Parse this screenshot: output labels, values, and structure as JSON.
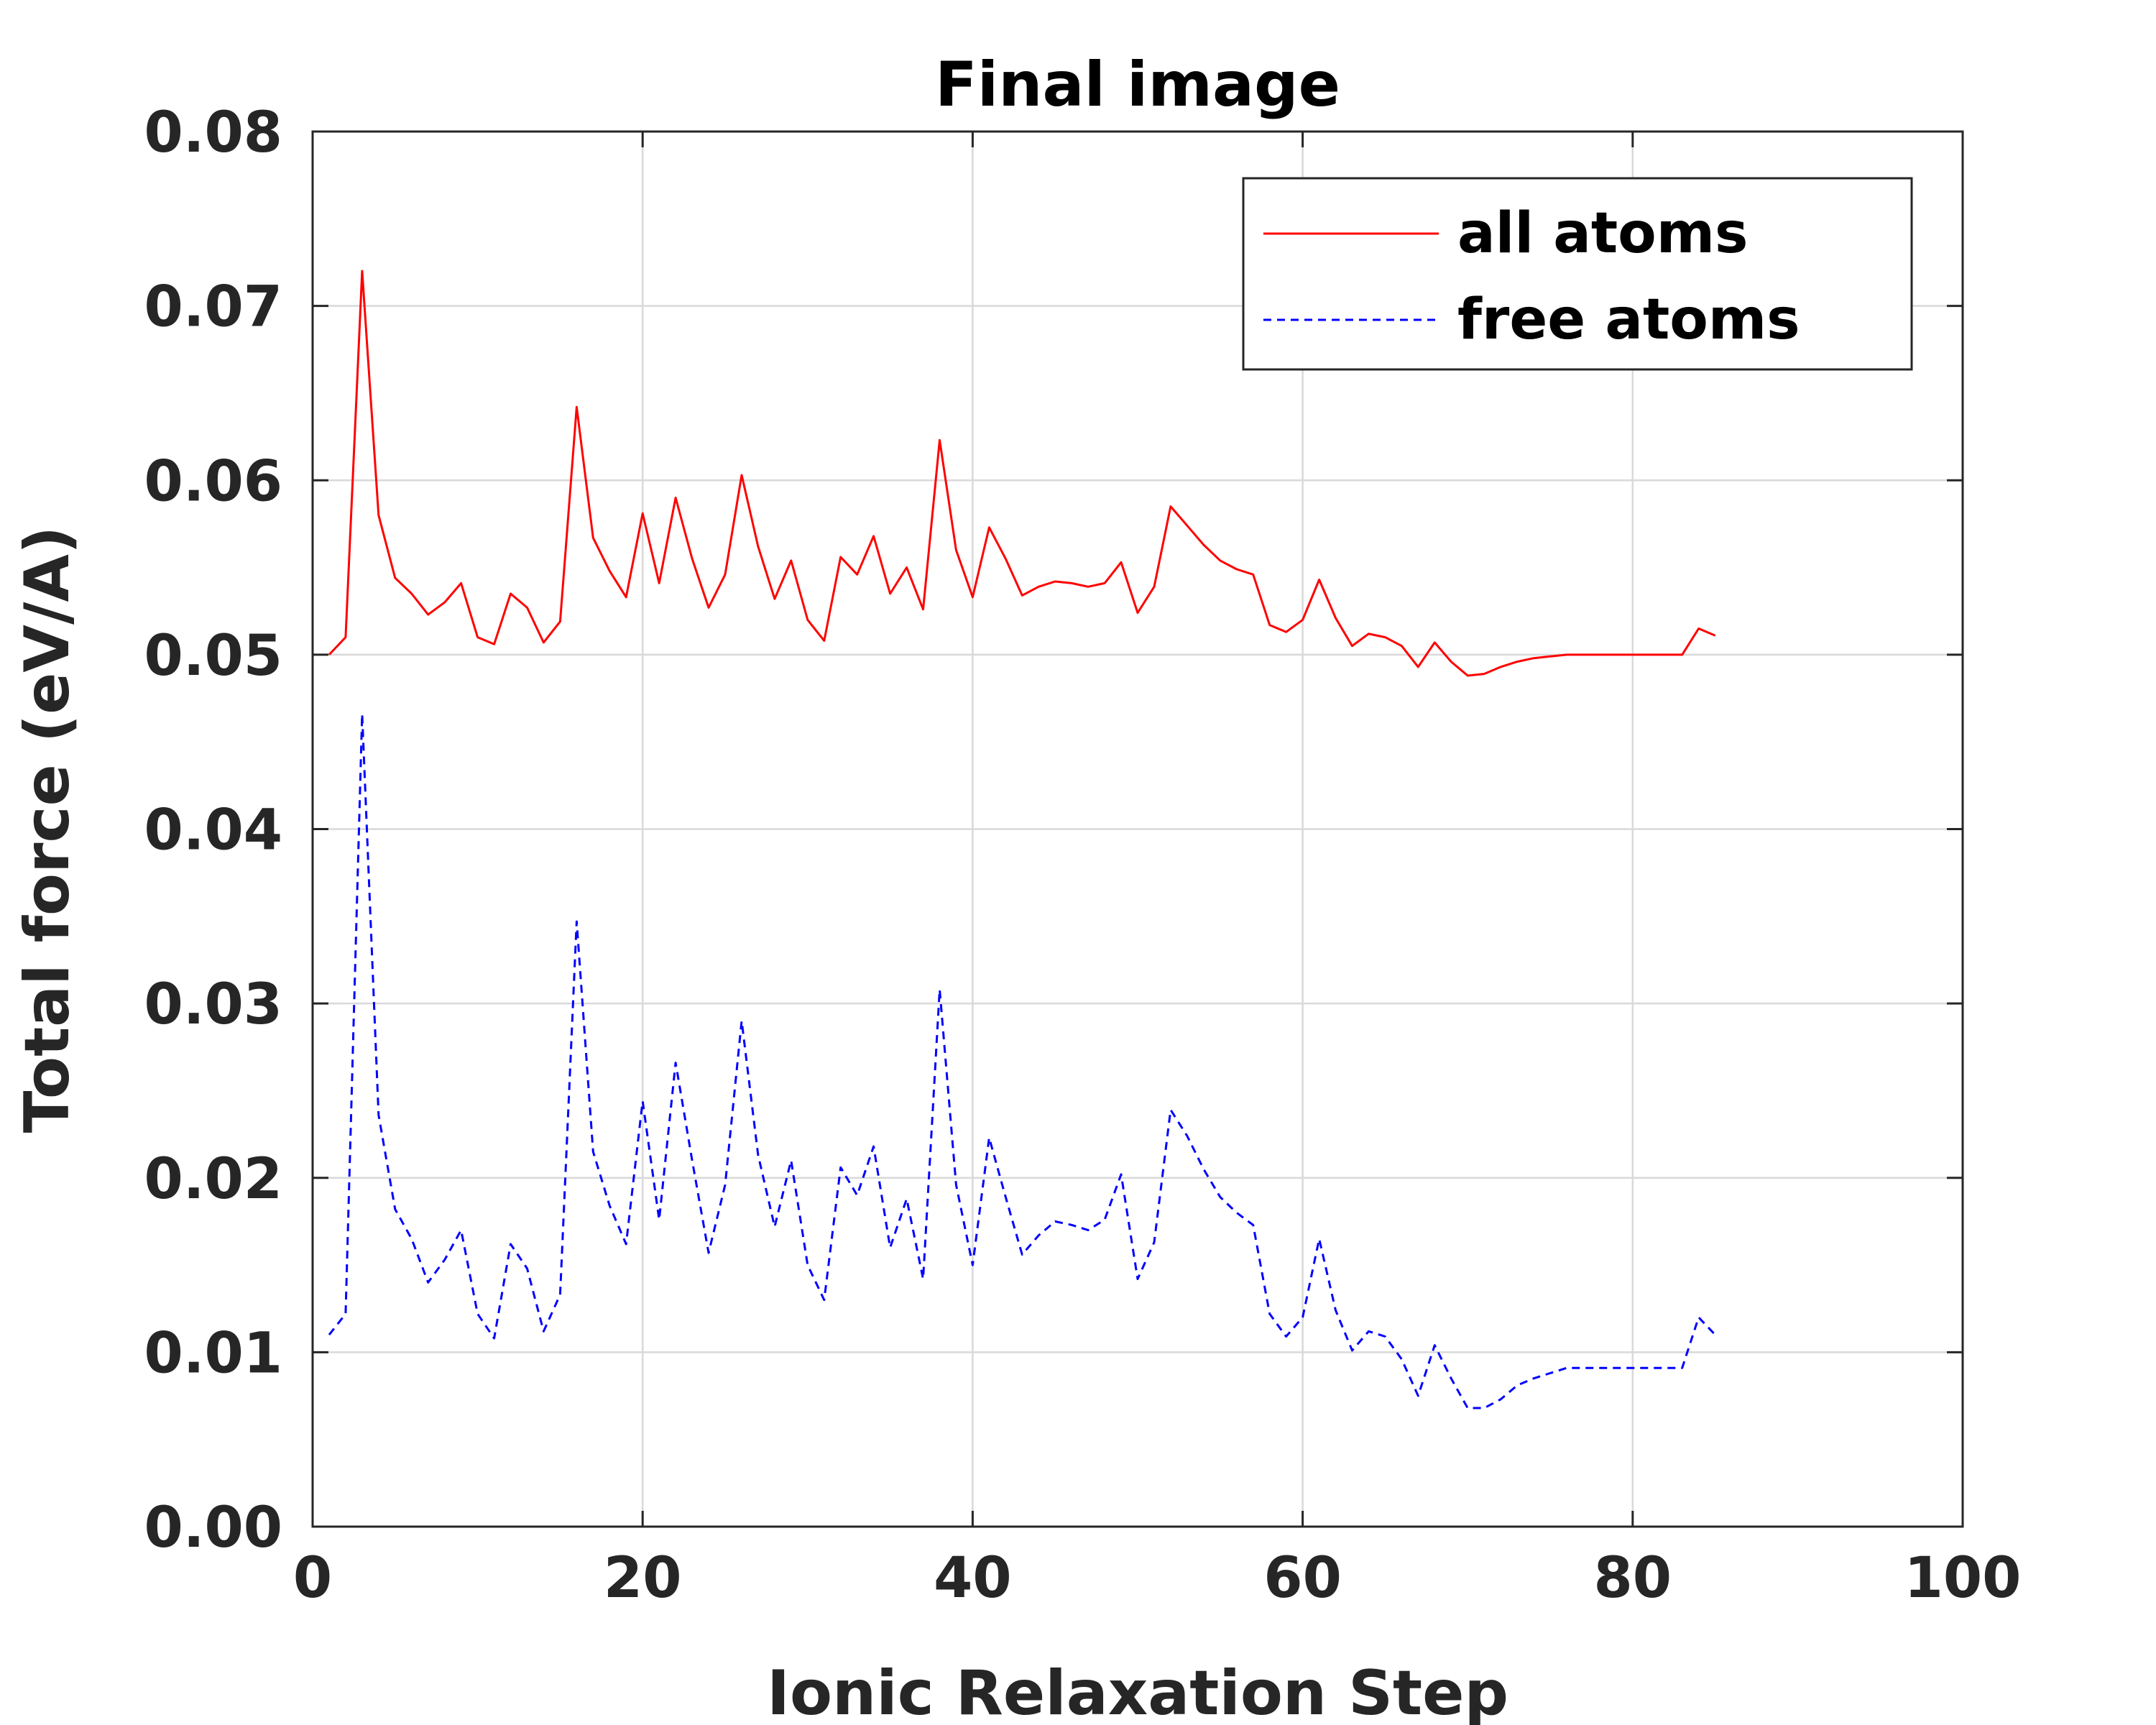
{
  "chart_data": {
    "type": "line",
    "title": "Final image",
    "xlabel": "Ionic Relaxation Step",
    "ylabel": "Total force (eV/A)",
    "xlim": [
      0,
      100
    ],
    "ylim": [
      0,
      0.08
    ],
    "xticks": [
      0,
      20,
      40,
      60,
      80,
      100
    ],
    "xtick_labels": [
      "0",
      "20",
      "40",
      "60",
      "80",
      "100"
    ],
    "yticks": [
      0,
      0.01,
      0.02,
      0.03,
      0.04,
      0.05,
      0.06,
      0.07,
      0.08
    ],
    "ytick_labels": [
      "0.00",
      "0.01",
      "0.02",
      "0.03",
      "0.04",
      "0.05",
      "0.06",
      "0.07",
      "0.08"
    ],
    "grid": true,
    "legend_position": "top-right",
    "x": [
      1,
      2,
      3,
      4,
      5,
      6,
      7,
      8,
      9,
      10,
      11,
      12,
      13,
      14,
      15,
      16,
      17,
      18,
      19,
      20,
      21,
      22,
      23,
      24,
      25,
      26,
      27,
      28,
      29,
      30,
      31,
      32,
      33,
      34,
      35,
      36,
      37,
      38,
      39,
      40,
      41,
      42,
      43,
      44,
      45,
      46,
      47,
      48,
      49,
      50,
      51,
      52,
      53,
      54,
      55,
      56,
      57,
      58,
      59,
      60,
      61,
      62,
      63,
      64,
      65,
      66,
      67,
      68,
      69,
      70,
      71,
      72,
      73,
      74,
      75,
      76,
      77,
      78,
      79,
      80,
      81,
      82,
      83,
      84,
      85
    ],
    "series": [
      {
        "name": "all atoms",
        "color": "#ff0000",
        "style": "solid",
        "values": [
          0.05,
          0.051,
          0.072,
          0.058,
          0.0544,
          0.0535,
          0.0523,
          0.053,
          0.0541,
          0.051,
          0.0506,
          0.0535,
          0.0527,
          0.0507,
          0.0519,
          0.0642,
          0.0567,
          0.0548,
          0.0533,
          0.0581,
          0.0541,
          0.059,
          0.0555,
          0.0527,
          0.0546,
          0.0603,
          0.0562,
          0.0532,
          0.0554,
          0.052,
          0.0508,
          0.0556,
          0.0546,
          0.0568,
          0.0535,
          0.055,
          0.0526,
          0.0623,
          0.056,
          0.0533,
          0.0573,
          0.0555,
          0.0534,
          0.0539,
          0.0542,
          0.0541,
          0.0539,
          0.0541,
          0.0553,
          0.0524,
          0.0539,
          0.0585,
          0.0574,
          0.0563,
          0.0554,
          0.0549,
          0.0546,
          0.0517,
          0.0513,
          0.052,
          0.0543,
          0.0521,
          0.0505,
          0.0512,
          0.051,
          0.0505,
          0.0493,
          0.0507,
          0.0496,
          0.0488,
          0.0489,
          0.0493,
          0.0496,
          0.0498,
          0.0499,
          0.05,
          0.05,
          0.05,
          0.05,
          0.05,
          0.05,
          0.05,
          0.05,
          0.0515,
          0.0511
        ]
      },
      {
        "name": "free atoms",
        "color": "#0000ff",
        "style": "dashed",
        "values": [
          0.011,
          0.0122,
          0.0466,
          0.0236,
          0.0182,
          0.0165,
          0.014,
          0.0153,
          0.017,
          0.0122,
          0.0108,
          0.0162,
          0.0148,
          0.0112,
          0.0133,
          0.0347,
          0.0215,
          0.0184,
          0.0162,
          0.0244,
          0.0176,
          0.0266,
          0.021,
          0.0157,
          0.0196,
          0.029,
          0.0213,
          0.0172,
          0.021,
          0.015,
          0.013,
          0.0206,
          0.019,
          0.0218,
          0.016,
          0.0188,
          0.0142,
          0.0308,
          0.0196,
          0.015,
          0.0223,
          0.0189,
          0.0156,
          0.0167,
          0.0175,
          0.0173,
          0.017,
          0.0176,
          0.0202,
          0.0142,
          0.0163,
          0.0239,
          0.0224,
          0.0205,
          0.0189,
          0.018,
          0.0173,
          0.0122,
          0.0109,
          0.012,
          0.0165,
          0.0124,
          0.0101,
          0.0112,
          0.0109,
          0.0096,
          0.0075,
          0.0104,
          0.0085,
          0.0068,
          0.0068,
          0.0073,
          0.0081,
          0.0085,
          0.0088,
          0.0091,
          0.0091,
          0.0091,
          0.0091,
          0.0091,
          0.0091,
          0.0091,
          0.0091,
          0.012,
          0.011
        ]
      }
    ]
  }
}
